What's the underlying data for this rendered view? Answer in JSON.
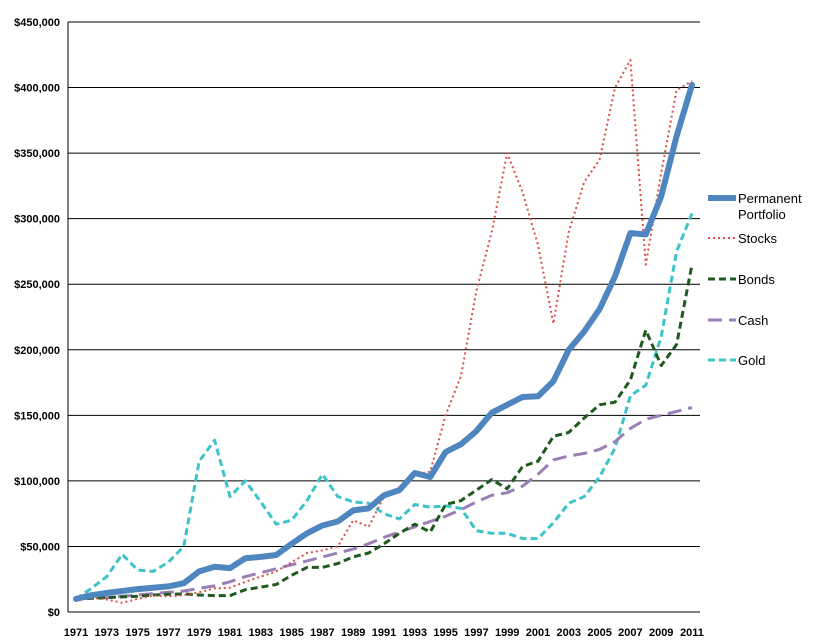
{
  "chart_data": {
    "type": "line",
    "title": "",
    "xlabel": "",
    "ylabel": "",
    "ylim": [
      0,
      450000
    ],
    "y_ticks": [
      0,
      50000,
      100000,
      150000,
      200000,
      250000,
      300000,
      350000,
      400000,
      450000
    ],
    "y_tick_labels": [
      "$0",
      "$50,000",
      "$100,000",
      "$150,000",
      "$200,000",
      "$250,000",
      "$300,000",
      "$350,000",
      "$400,000",
      "$450,000"
    ],
    "x_ticks": [
      1971,
      1973,
      1975,
      1977,
      1979,
      1981,
      1983,
      1985,
      1987,
      1989,
      1991,
      1993,
      1995,
      1997,
      1999,
      2001,
      2003,
      2005,
      2007,
      2009,
      2011
    ],
    "x": [
      1971,
      1972,
      1973,
      1974,
      1975,
      1976,
      1977,
      1978,
      1979,
      1980,
      1981,
      1982,
      1983,
      1984,
      1985,
      1986,
      1987,
      1988,
      1989,
      1990,
      1991,
      1992,
      1993,
      1994,
      1995,
      1996,
      1997,
      1998,
      1999,
      2000,
      2001,
      2002,
      2003,
      2004,
      2005,
      2006,
      2007,
      2008,
      2009,
      2010,
      2011
    ],
    "grid": "horizontal",
    "legend_position": "right",
    "series": [
      {
        "name": "Permanent Portfolio",
        "color": "#4f86c0",
        "style": "solid-thick",
        "values": [
          10000,
          12800,
          14500,
          16000,
          17500,
          18500,
          19500,
          22000,
          31000,
          34500,
          33500,
          41000,
          42000,
          43500,
          52000,
          60000,
          66000,
          69000,
          77500,
          79000,
          89000,
          93000,
          106000,
          103000,
          122000,
          128000,
          138000,
          152000,
          158000,
          164000,
          164500,
          176000,
          200000,
          214000,
          231000,
          256000,
          289000,
          288000,
          317000,
          363000,
          402000
        ]
      },
      {
        "name": "Stocks",
        "color": "#d8504a",
        "style": "dotted",
        "values": [
          10000,
          11000,
          9500,
          7000,
          10000,
          12500,
          12000,
          12800,
          15000,
          18000,
          18500,
          23000,
          27000,
          31000,
          38000,
          45000,
          47000,
          50000,
          70000,
          65000,
          88000,
          95000,
          105000,
          107000,
          150000,
          180000,
          245000,
          290000,
          350000,
          320000,
          280000,
          220000,
          290000,
          328000,
          345000,
          400000,
          421000,
          265000,
          335000,
          398000,
          405000
        ]
      },
      {
        "name": "Bonds",
        "color": "#1e5a1e",
        "style": "dashed",
        "values": [
          10000,
          10500,
          11000,
          11500,
          12000,
          13000,
          13500,
          13800,
          13000,
          12500,
          12500,
          17000,
          19000,
          21000,
          28000,
          34000,
          34000,
          37000,
          42000,
          45000,
          52000,
          60000,
          67000,
          61000,
          82000,
          85000,
          93000,
          101000,
          94000,
          111000,
          115000,
          134000,
          137000,
          148000,
          158000,
          160000,
          177000,
          215000,
          188000,
          204000,
          265000
        ]
      },
      {
        "name": "Cash",
        "color": "#9a7fb6",
        "style": "long-dash",
        "values": [
          10000,
          10500,
          11000,
          12000,
          13000,
          14000,
          15000,
          16000,
          18000,
          20000,
          23000,
          27000,
          30000,
          33000,
          36000,
          39000,
          42000,
          45000,
          48000,
          52000,
          57000,
          61000,
          65000,
          69000,
          73000,
          78000,
          84000,
          89000,
          91000,
          96000,
          105000,
          116000,
          119000,
          121000,
          124000,
          130000,
          140000,
          147000,
          150000,
          153000,
          156000
        ]
      },
      {
        "name": "Gold",
        "color": "#3ec3c8",
        "style": "dashed",
        "values": [
          10000,
          18000,
          27000,
          44000,
          32000,
          31000,
          38000,
          50000,
          115000,
          131000,
          88000,
          100000,
          84000,
          67000,
          70000,
          85000,
          105000,
          88000,
          84000,
          83000,
          75000,
          71000,
          82000,
          80000,
          81000,
          79000,
          62000,
          60000,
          60000,
          56000,
          56000,
          68000,
          83000,
          88000,
          103000,
          125000,
          165000,
          173000,
          210000,
          275000,
          304000
        ]
      }
    ]
  }
}
